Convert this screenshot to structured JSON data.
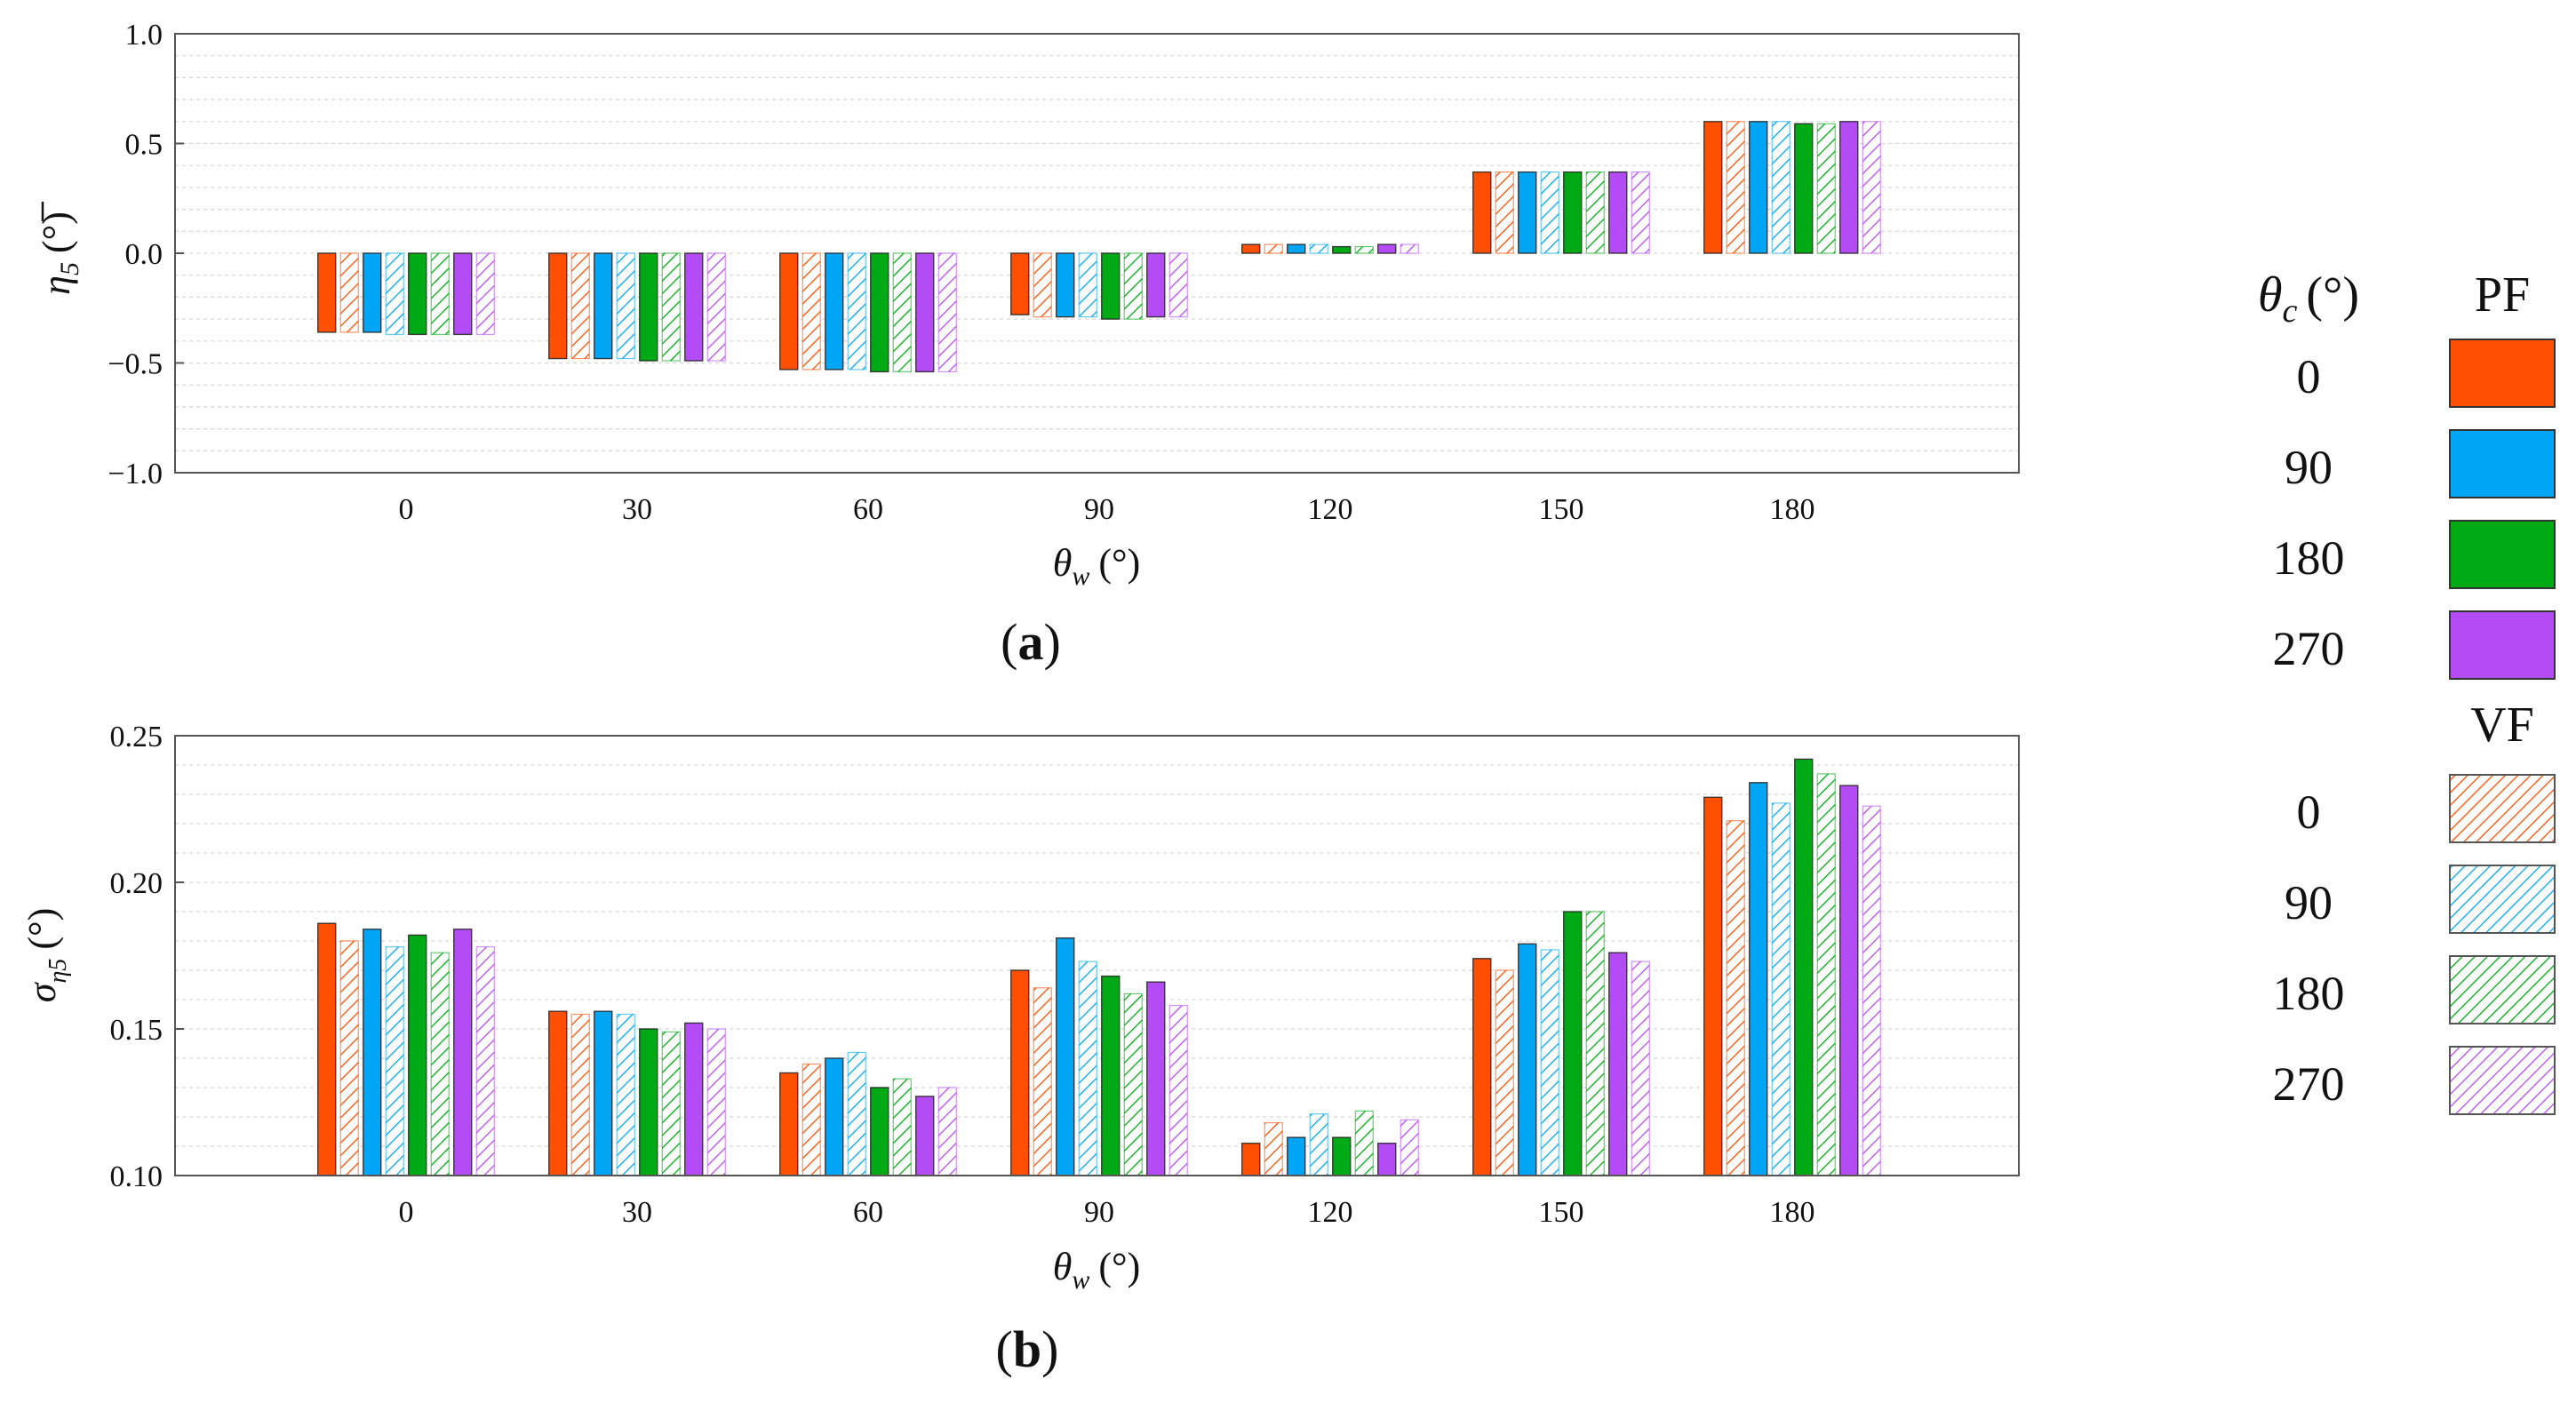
{
  "chart_data": [
    {
      "panel_label": "a",
      "type": "bar",
      "categories": [
        "0",
        "30",
        "60",
        "90",
        "120",
        "150",
        "180"
      ],
      "xlabel_symbol": "θ",
      "xlabel_sub": "w",
      "xlabel_unit": "(°)",
      "ylabel_symbol": "η",
      "ylabel_sub": "5",
      "ylabel_unit": "(°)",
      "ylim": [
        -1.0,
        1.0
      ],
      "yticks": [
        "-1.0",
        "-0.5",
        "0.0",
        "0.5",
        "1.0"
      ],
      "yticks_values": [
        -1.0,
        -0.5,
        0.0,
        0.5,
        1.0
      ],
      "grid": true,
      "series": [
        {
          "name": "PF 0",
          "values": [
            -0.36,
            -0.48,
            -0.53,
            -0.28,
            0.04,
            0.37,
            0.6
          ]
        },
        {
          "name": "VF 0",
          "values": [
            -0.36,
            -0.48,
            -0.53,
            -0.29,
            0.04,
            0.37,
            0.6
          ]
        },
        {
          "name": "PF 90",
          "values": [
            -0.36,
            -0.48,
            -0.53,
            -0.29,
            0.04,
            0.37,
            0.6
          ]
        },
        {
          "name": "VF 90",
          "values": [
            -0.37,
            -0.48,
            -0.53,
            -0.29,
            0.04,
            0.37,
            0.6
          ]
        },
        {
          "name": "PF 180",
          "values": [
            -0.37,
            -0.49,
            -0.54,
            -0.3,
            0.03,
            0.37,
            0.59
          ]
        },
        {
          "name": "VF 180",
          "values": [
            -0.37,
            -0.49,
            -0.54,
            -0.3,
            0.03,
            0.37,
            0.59
          ]
        },
        {
          "name": "PF 270",
          "values": [
            -0.37,
            -0.49,
            -0.54,
            -0.29,
            0.04,
            0.37,
            0.6
          ]
        },
        {
          "name": "VF 270",
          "values": [
            -0.37,
            -0.49,
            -0.54,
            -0.29,
            0.04,
            0.37,
            0.6
          ]
        }
      ]
    },
    {
      "panel_label": "b",
      "type": "bar",
      "categories": [
        "0",
        "30",
        "60",
        "90",
        "120",
        "150",
        "180"
      ],
      "xlabel_symbol": "θ",
      "xlabel_sub": "w",
      "xlabel_unit": "(°)",
      "ylabel_symbol": "σ",
      "ylabel_sub": "η5",
      "ylabel_unit": "(°)",
      "ylim": [
        0.1,
        0.25
      ],
      "yticks": [
        "0.10",
        "0.15",
        "0.20",
        "0.25"
      ],
      "yticks_values": [
        0.1,
        0.15,
        0.2,
        0.25
      ],
      "grid": true,
      "series": [
        {
          "name": "PF 0",
          "values": [
            0.186,
            0.156,
            0.135,
            0.17,
            0.111,
            0.174,
            0.229
          ]
        },
        {
          "name": "VF 0",
          "values": [
            0.18,
            0.155,
            0.138,
            0.164,
            0.118,
            0.17,
            0.221
          ]
        },
        {
          "name": "PF 90",
          "values": [
            0.184,
            0.156,
            0.14,
            0.181,
            0.113,
            0.179,
            0.234
          ]
        },
        {
          "name": "VF 90",
          "values": [
            0.178,
            0.155,
            0.142,
            0.173,
            0.121,
            0.177,
            0.227
          ]
        },
        {
          "name": "PF 180",
          "values": [
            0.182,
            0.15,
            0.13,
            0.168,
            0.113,
            0.19,
            0.242
          ]
        },
        {
          "name": "VF 180",
          "values": [
            0.176,
            0.149,
            0.133,
            0.162,
            0.122,
            0.19,
            0.237
          ]
        },
        {
          "name": "PF 270",
          "values": [
            0.184,
            0.152,
            0.127,
            0.166,
            0.111,
            0.176,
            0.233
          ]
        },
        {
          "name": "VF 270",
          "values": [
            0.178,
            0.15,
            0.13,
            0.158,
            0.119,
            0.173,
            0.226
          ]
        }
      ]
    }
  ],
  "legend": {
    "header_symbol": "θ",
    "header_sub": "c",
    "header_unit": "(°)",
    "pf_label": "PF",
    "vf_label": "VF",
    "angles": [
      "0",
      "90",
      "180",
      "270"
    ],
    "colors": [
      "#ff4f00",
      "#00a6f5",
      "#00aa14",
      "#b44cf5"
    ]
  }
}
